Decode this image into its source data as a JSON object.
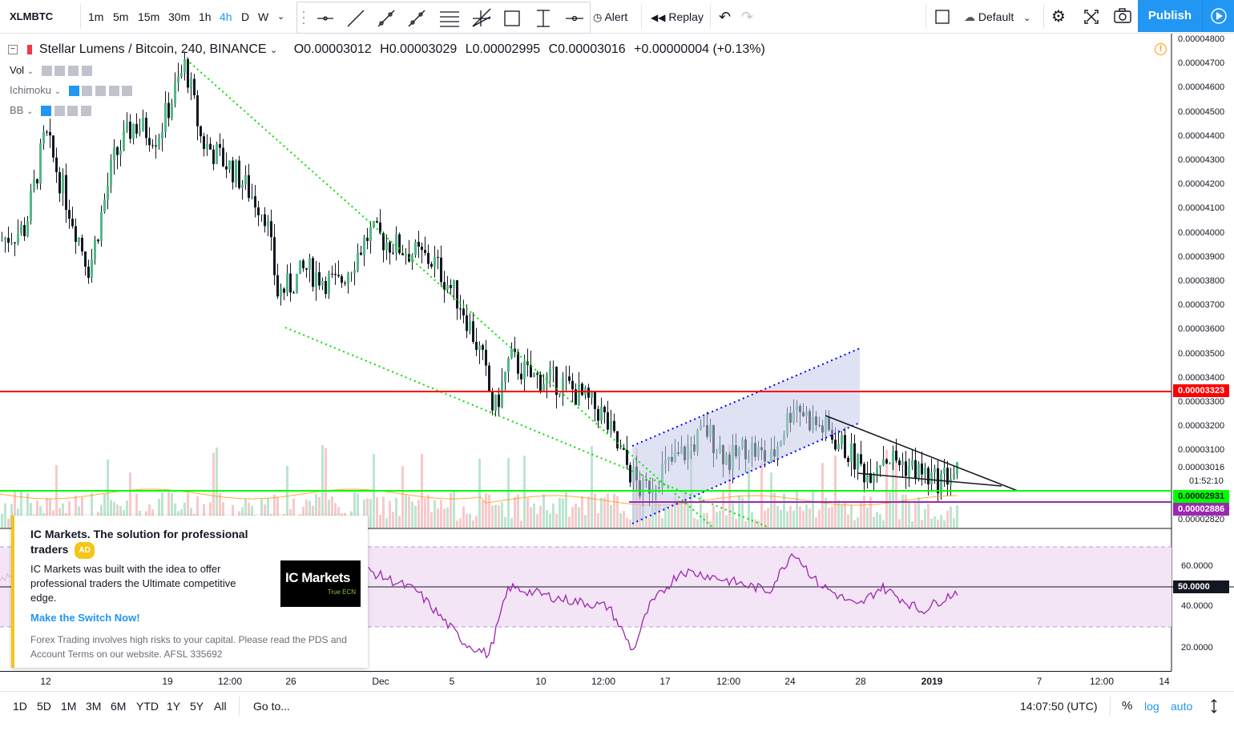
{
  "toolbar": {
    "symbol": "XLMBTC",
    "intervals": [
      "1m",
      "5m",
      "15m",
      "30m",
      "1h",
      "4h",
      "D",
      "W"
    ],
    "active_interval": "4h",
    "alert_label": "Alert",
    "replay_label": "Replay",
    "layout_label": "Default",
    "publish_label": "Publish"
  },
  "legend": {
    "title": "Stellar Lumens / Bitcoin, 240, BINANCE",
    "open": "O0.00003012",
    "high": "H0.00003029",
    "low": "L0.00002995",
    "close": "C0.00003016",
    "change": "+0.00000004 (+0.13%)"
  },
  "indicators": [
    {
      "name": "Vol"
    },
    {
      "name": "Ichimoku"
    },
    {
      "name": "BB"
    }
  ],
  "price_axis": {
    "labels": [
      "0.00004800",
      "0.00004700",
      "0.00004600",
      "0.00004500",
      "0.00004400",
      "0.00004300",
      "0.00004200",
      "0.00004100",
      "0.00004000",
      "0.00003900",
      "0.00003800",
      "0.00003700",
      "0.00003600",
      "0.00003500",
      "0.00003400",
      "0.00003300",
      "0.00003200",
      "0.00003100",
      "0.00003016",
      "0.00002820"
    ],
    "countdown": "01:52:10",
    "tag_red": "0.00003323",
    "tag_green": "0.00002931",
    "tag_purple": "0.00002886"
  },
  "rsi_axis": {
    "labels": [
      "60.0000",
      "40.0000",
      "20.0000"
    ],
    "mid_label": "50.0000"
  },
  "time_axis": [
    "12",
    "19",
    "12:00",
    "26",
    "Dec",
    "5",
    "10",
    "12:00",
    "17",
    "12:00",
    "24",
    "28",
    "2019",
    "7",
    "12:00",
    "14"
  ],
  "ad": {
    "title": "IC Markets. The solution for professional traders",
    "badge": "AD",
    "body": "IC Markets was built with the idea to offer professional traders the Ultimate competitive edge.",
    "link": "Make the Switch Now!",
    "disclaimer": "Forex Trading involves high risks to your capital. Please read the PDS and Account Terms on our website. AFSL 335692",
    "logo_main": "IC Markets",
    "logo_sub": "True ECN"
  },
  "bottom": {
    "ranges": [
      "1D",
      "5D",
      "1M",
      "3M",
      "6M",
      "YTD",
      "1Y",
      "5Y",
      "All"
    ],
    "goto": "Go to...",
    "clock": "14:07:50 (UTC)",
    "percent": "%",
    "log": "log",
    "auto": "auto"
  },
  "colors": {
    "up": "#53b987",
    "down": "#000000",
    "accent": "#2196f3",
    "red_line": "#ff0000",
    "green_line": "#00ff00",
    "purple_line": "#9c27b0",
    "channel_fill": "#c5cae9",
    "rsi_band": "#f3e5f5",
    "rsi_line": "#9c27b0"
  },
  "chart_data": {
    "type": "candlestick",
    "title": "Stellar Lumens / Bitcoin, 240, BINANCE",
    "y_range": [
      2.81e-05,
      4.81e-05
    ],
    "horizontal_levels": [
      3.323e-05,
      2.931e-05,
      2.886e-05
    ],
    "last_price": 3.016e-05,
    "anchors": [
      {
        "t": 0,
        "p": 3.97e-05
      },
      {
        "t": 30,
        "p": 4.02e-05
      },
      {
        "t": 55,
        "p": 4.41e-05
      },
      {
        "t": 80,
        "p": 4.15e-05
      },
      {
        "t": 110,
        "p": 3.85e-05
      },
      {
        "t": 140,
        "p": 4.3e-05
      },
      {
        "t": 165,
        "p": 4.45e-05
      },
      {
        "t": 195,
        "p": 4.4e-05
      },
      {
        "t": 230,
        "p": 4.7e-05
      },
      {
        "t": 250,
        "p": 4.38e-05
      },
      {
        "t": 290,
        "p": 4.26e-05
      },
      {
        "t": 330,
        "p": 4.08e-05
      },
      {
        "t": 345,
        "p": 3.75e-05
      },
      {
        "t": 360,
        "p": 3.78e-05
      },
      {
        "t": 380,
        "p": 3.85e-05
      },
      {
        "t": 420,
        "p": 3.78e-05
      },
      {
        "t": 460,
        "p": 4e-05
      },
      {
        "t": 490,
        "p": 3.95e-05
      },
      {
        "t": 540,
        "p": 3.88e-05
      },
      {
        "t": 575,
        "p": 3.7e-05
      },
      {
        "t": 600,
        "p": 3.48e-05
      },
      {
        "t": 615,
        "p": 3.25e-05
      },
      {
        "t": 635,
        "p": 3.48e-05
      },
      {
        "t": 660,
        "p": 3.4e-05
      },
      {
        "t": 700,
        "p": 3.38e-05
      },
      {
        "t": 750,
        "p": 3.25e-05
      },
      {
        "t": 770,
        "p": 3.1e-05
      },
      {
        "t": 800,
        "p": 2.92e-05
      },
      {
        "t": 820,
        "p": 3e-05
      },
      {
        "t": 850,
        "p": 3.08e-05
      },
      {
        "t": 880,
        "p": 3.18e-05
      },
      {
        "t": 910,
        "p": 3.05e-05
      },
      {
        "t": 930,
        "p": 3.12e-05
      },
      {
        "t": 960,
        "p": 3.05e-05
      },
      {
        "t": 990,
        "p": 3.3e-05
      },
      {
        "t": 1010,
        "p": 3.22e-05
      },
      {
        "t": 1030,
        "p": 3.18e-05
      },
      {
        "t": 1060,
        "p": 3.08e-05
      },
      {
        "t": 1080,
        "p": 3e-05
      },
      {
        "t": 1100,
        "p": 3.08e-05
      },
      {
        "t": 1140,
        "p": 3.02e-05
      },
      {
        "t": 1165,
        "p": 2.97e-05
      },
      {
        "t": 1195,
        "p": 3.01e-05
      }
    ],
    "rsi": {
      "band": [
        30,
        70
      ],
      "mid": 50,
      "anchors": [
        {
          "t": 460,
          "v": 58
        },
        {
          "t": 520,
          "v": 48
        },
        {
          "t": 580,
          "v": 22
        },
        {
          "t": 610,
          "v": 16
        },
        {
          "t": 635,
          "v": 50
        },
        {
          "t": 700,
          "v": 44
        },
        {
          "t": 760,
          "v": 40
        },
        {
          "t": 790,
          "v": 18
        },
        {
          "t": 810,
          "v": 40
        },
        {
          "t": 850,
          "v": 58
        },
        {
          "t": 880,
          "v": 56
        },
        {
          "t": 920,
          "v": 52
        },
        {
          "t": 960,
          "v": 48
        },
        {
          "t": 990,
          "v": 68
        },
        {
          "t": 1020,
          "v": 52
        },
        {
          "t": 1070,
          "v": 40
        },
        {
          "t": 1100,
          "v": 50
        },
        {
          "t": 1150,
          "v": 38
        },
        {
          "t": 1195,
          "v": 48
        }
      ]
    }
  }
}
